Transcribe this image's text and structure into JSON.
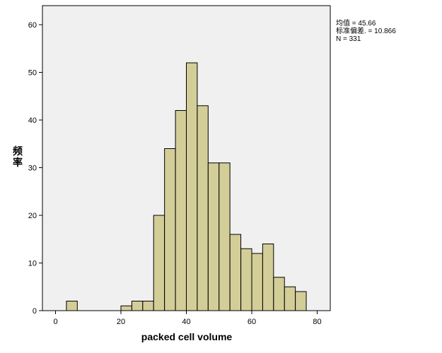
{
  "chart_data": {
    "type": "bar",
    "subtype": "histogram",
    "xlabel": "packed cell volume",
    "ylabel": "频率",
    "xlim": [
      -4,
      84
    ],
    "ylim": [
      0,
      64
    ],
    "x_ticks": [
      0,
      20,
      40,
      60,
      80
    ],
    "y_ticks": [
      0,
      10,
      20,
      30,
      40,
      50,
      60
    ],
    "bin_width": 3.33,
    "bins": [
      {
        "start": 3.33,
        "count": 2
      },
      {
        "start": 20.0,
        "count": 1
      },
      {
        "start": 23.33,
        "count": 2
      },
      {
        "start": 26.67,
        "count": 2
      },
      {
        "start": 30.0,
        "count": 20
      },
      {
        "start": 33.33,
        "count": 34
      },
      {
        "start": 36.67,
        "count": 42
      },
      {
        "start": 40.0,
        "count": 52
      },
      {
        "start": 43.33,
        "count": 43
      },
      {
        "start": 46.67,
        "count": 31
      },
      {
        "start": 50.0,
        "count": 31
      },
      {
        "start": 53.33,
        "count": 16
      },
      {
        "start": 56.67,
        "count": 13
      },
      {
        "start": 60.0,
        "count": 12
      },
      {
        "start": 63.33,
        "count": 14
      },
      {
        "start": 66.67,
        "count": 7
      },
      {
        "start": 70.0,
        "count": 5
      },
      {
        "start": 73.33,
        "count": 4
      }
    ],
    "stats": {
      "mean_label": "均值 = 45.66",
      "sd_label": "标准偏差. = 10.866",
      "n_label": "N = 331"
    },
    "colors": {
      "bar_fill": "#d3cd98",
      "bar_stroke": "#000000",
      "plot_bg": "#f0f0f0"
    },
    "grid": false,
    "legend": "none"
  }
}
